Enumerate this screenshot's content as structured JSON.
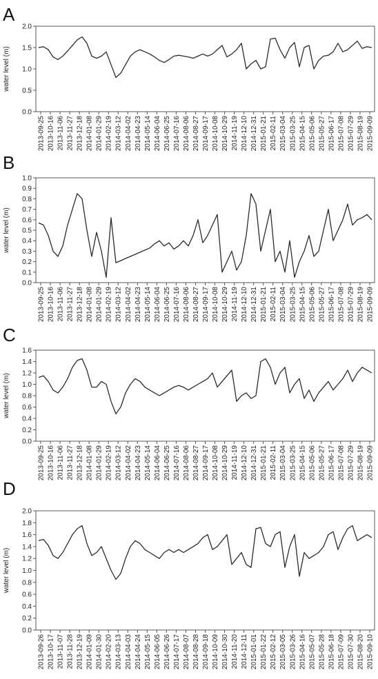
{
  "chart_data": [
    {
      "type": "line",
      "panel_label": "A",
      "ylabel": "water level (m)",
      "ylim": [
        0.0,
        2.0
      ],
      "yticks": [
        "0.0",
        "0.5",
        "1.0",
        "1.5",
        "2.0"
      ],
      "grid": false,
      "line_color": "#2a2a2a",
      "xtick_labels": [
        "2013-09-25",
        "2013-10-16",
        "2013-11-06",
        "2013-11-27",
        "2013-12-18",
        "2014-01-08",
        "2014-01-29",
        "2014-02-19",
        "2014-03-12",
        "2014-04-02",
        "2014-04-23",
        "2014-05-14",
        "2014-06-04",
        "2014-06-25",
        "2014-07-16",
        "2014-08-06",
        "2014-08-27",
        "2014-09-17",
        "2014-10-08",
        "2014-10-29",
        "2014-11-19",
        "2014-12-10",
        "2014-12-31",
        "2015-01-21",
        "2015-02-11",
        "2015-03-04",
        "2015-03-25",
        "2015-04-15",
        "2015-05-06",
        "2015-05-27",
        "2015-06-17",
        "2015-07-08",
        "2015-07-29",
        "2015-08-19",
        "2015-09-09"
      ],
      "series": [
        {
          "x": [
            0,
            1,
            2,
            3,
            4,
            5,
            6,
            7,
            8,
            9,
            10,
            11,
            12,
            13,
            14,
            15,
            16,
            17,
            18,
            19,
            20,
            21,
            22,
            23,
            24,
            25,
            26,
            27,
            28,
            29,
            30,
            31,
            32,
            33,
            34,
            35,
            36,
            37,
            38,
            39,
            40,
            41,
            42,
            43,
            44,
            45,
            46,
            47,
            48,
            49,
            50,
            51,
            52,
            53,
            54,
            55,
            56,
            57,
            58,
            59,
            60,
            61,
            62,
            63,
            64,
            65,
            66,
            67,
            68,
            69
          ],
          "y": [
            1.5,
            1.52,
            1.45,
            1.28,
            1.22,
            1.3,
            1.42,
            1.55,
            1.68,
            1.75,
            1.6,
            1.3,
            1.25,
            1.3,
            1.4,
            1.1,
            0.8,
            0.9,
            1.1,
            1.3,
            1.4,
            1.45,
            1.4,
            1.35,
            1.28,
            1.2,
            1.15,
            1.22,
            1.3,
            1.32,
            1.3,
            1.28,
            1.25,
            1.3,
            1.35,
            1.3,
            1.35,
            1.45,
            1.55,
            1.28,
            1.35,
            1.45,
            1.6,
            1.0,
            1.12,
            1.2,
            1.0,
            1.05,
            1.7,
            1.72,
            1.45,
            1.25,
            1.5,
            1.62,
            1.05,
            1.5,
            1.55,
            1.0,
            1.2,
            1.3,
            1.32,
            1.4,
            1.6,
            1.4,
            1.45,
            1.55,
            1.65,
            1.48,
            1.52,
            1.5
          ]
        }
      ]
    },
    {
      "type": "line",
      "panel_label": "B",
      "ylabel": "water level (m)",
      "ylim": [
        0.0,
        1.0
      ],
      "yticks": [
        "0.0",
        "0.1",
        "0.2",
        "0.3",
        "0.4",
        "0.5",
        "0.6",
        "0.7",
        "0.8",
        "0.9",
        "1.0"
      ],
      "grid": false,
      "line_color": "#2a2a2a",
      "xtick_labels": [
        "2013-09-25",
        "2013-10-16",
        "2013-11-06",
        "2013-11-27",
        "2013-12-18",
        "2014-01-08",
        "2014-01-29",
        "2014-02-19",
        "2014-03-12",
        "2014-04-02",
        "2014-04-23",
        "2014-05-14",
        "2014-06-04",
        "2014-06-25",
        "2014-07-16",
        "2014-08-06",
        "2014-08-27",
        "2014-09-17",
        "2014-10-08",
        "2014-10-29",
        "2014-11-19",
        "2014-12-10",
        "2014-12-31",
        "2015-01-21",
        "2015-02-11",
        "2015-03-04",
        "2015-03-25",
        "2015-04-15",
        "2015-05-06",
        "2015-05-27",
        "2015-06-17",
        "2015-07-08",
        "2015-07-29",
        "2015-08-19",
        "2015-09-09"
      ],
      "series": [
        {
          "x": [
            0,
            1,
            2,
            3,
            4,
            5,
            6,
            7,
            8,
            9,
            10,
            11,
            12,
            13,
            14,
            15,
            16,
            17,
            18,
            19,
            20,
            21,
            22,
            23,
            24,
            25,
            26,
            27,
            28,
            29,
            30,
            31,
            32,
            33,
            34,
            35,
            36,
            37,
            38,
            39,
            40,
            41,
            42,
            43,
            44,
            45,
            46,
            47,
            48,
            49,
            50,
            51,
            52,
            53,
            54,
            55,
            56,
            57,
            58,
            59,
            60,
            61,
            62,
            63,
            64,
            65,
            66,
            67,
            68,
            69
          ],
          "y": [
            0.57,
            0.55,
            0.45,
            0.3,
            0.25,
            0.35,
            0.55,
            0.7,
            0.85,
            0.8,
            0.5,
            0.25,
            0.48,
            0.3,
            0.05,
            0.62,
            0.19,
            0.21,
            0.23,
            0.25,
            0.27,
            0.29,
            0.31,
            0.33,
            0.37,
            0.4,
            0.35,
            0.38,
            0.32,
            0.35,
            0.4,
            0.35,
            0.45,
            0.6,
            0.38,
            0.45,
            0.55,
            0.65,
            0.1,
            0.2,
            0.3,
            0.12,
            0.2,
            0.45,
            0.85,
            0.75,
            0.3,
            0.5,
            0.7,
            0.2,
            0.3,
            0.1,
            0.4,
            0.05,
            0.2,
            0.3,
            0.45,
            0.25,
            0.3,
            0.5,
            0.7,
            0.4,
            0.5,
            0.6,
            0.75,
            0.55,
            0.6,
            0.62,
            0.65,
            0.6
          ]
        }
      ]
    },
    {
      "type": "line",
      "panel_label": "C",
      "ylabel": "water level (m)",
      "ylim": [
        0.0,
        1.6
      ],
      "yticks": [
        "0.0",
        "0.2",
        "0.4",
        "0.6",
        "0.8",
        "1.0",
        "1.2",
        "1.4",
        "1.6"
      ],
      "grid": false,
      "line_color": "#2a2a2a",
      "xtick_labels": [
        "2013-09-25",
        "2013-10-16",
        "2013-11-06",
        "2013-11-27",
        "2013-12-18",
        "2014-01-08",
        "2014-01-29",
        "2014-02-19",
        "2014-03-12",
        "2014-04-02",
        "2014-04-23",
        "2014-05-14",
        "2014-06-04",
        "2014-06-25",
        "2014-07-16",
        "2014-08-06",
        "2014-08-27",
        "2014-09-17",
        "2014-10-08",
        "2014-10-29",
        "2014-11-19",
        "2014-12-10",
        "2014-12-31",
        "2015-01-21",
        "2015-02-11",
        "2015-03-04",
        "2015-03-25",
        "2015-04-15",
        "2015-05-06",
        "2015-05-27",
        "2015-06-17",
        "2015-07-08",
        "2015-07-29",
        "2015-08-19",
        "2015-09-09"
      ],
      "series": [
        {
          "x": [
            0,
            1,
            2,
            3,
            4,
            5,
            6,
            7,
            8,
            9,
            10,
            11,
            12,
            13,
            14,
            15,
            16,
            17,
            18,
            19,
            20,
            21,
            22,
            23,
            24,
            25,
            26,
            27,
            28,
            29,
            30,
            31,
            32,
            33,
            34,
            35,
            36,
            37,
            38,
            39,
            40,
            41,
            42,
            43,
            44,
            45,
            46,
            47,
            48,
            49,
            50,
            51,
            52,
            53,
            54,
            55,
            56,
            57,
            58,
            59,
            60,
            61,
            62,
            63,
            64,
            65,
            66,
            67,
            68,
            69
          ],
          "y": [
            1.12,
            1.15,
            1.05,
            0.9,
            0.85,
            0.95,
            1.1,
            1.3,
            1.42,
            1.45,
            1.25,
            0.95,
            0.95,
            1.05,
            1.0,
            0.7,
            0.48,
            0.6,
            0.85,
            1.0,
            1.1,
            1.05,
            0.95,
            0.9,
            0.85,
            0.8,
            0.85,
            0.9,
            0.95,
            0.98,
            0.95,
            0.9,
            0.95,
            1.0,
            1.05,
            1.1,
            1.2,
            0.95,
            1.05,
            1.15,
            1.25,
            0.7,
            0.8,
            0.85,
            0.75,
            0.8,
            1.4,
            1.45,
            1.3,
            1.0,
            1.2,
            1.3,
            0.85,
            1.0,
            1.1,
            0.75,
            0.9,
            0.7,
            0.85,
            0.95,
            1.05,
            0.9,
            1.0,
            1.1,
            1.25,
            1.05,
            1.2,
            1.3,
            1.25,
            1.2
          ]
        }
      ]
    },
    {
      "type": "line",
      "panel_label": "D",
      "ylabel": "water level (m)",
      "ylim": [
        0.0,
        2.0
      ],
      "yticks": [
        "0.0",
        "0.2",
        "0.4",
        "0.6",
        "0.8",
        "1.0",
        "1.2",
        "1.4",
        "1.6",
        "1.8",
        "2.0"
      ],
      "grid": false,
      "line_color": "#2a2a2a",
      "xtick_labels": [
        "2013-09-26",
        "2013-10-17",
        "2013-11-07",
        "2013-11-28",
        "2013-12-19",
        "2014-01-09",
        "2014-01-30",
        "2014-02-20",
        "2014-03-13",
        "2014-04-03",
        "2014-04-24",
        "2014-05-15",
        "2014-06-05",
        "2014-06-26",
        "2014-07-17",
        "2014-08-07",
        "2014-08-28",
        "2014-09-18",
        "2014-10-09",
        "2014-10-30",
        "2014-11-20",
        "2014-12-11",
        "2015-01-01",
        "2015-01-22",
        "2015-02-12",
        "2015-03-05",
        "2015-03-26",
        "2015-04-16",
        "2015-05-07",
        "2015-05-28",
        "2015-06-18",
        "2015-07-09",
        "2015-07-30",
        "2015-08-20",
        "2015-09-10"
      ],
      "series": [
        {
          "x": [
            0,
            1,
            2,
            3,
            4,
            5,
            6,
            7,
            8,
            9,
            10,
            11,
            12,
            13,
            14,
            15,
            16,
            17,
            18,
            19,
            20,
            21,
            22,
            23,
            24,
            25,
            26,
            27,
            28,
            29,
            30,
            31,
            32,
            33,
            34,
            35,
            36,
            37,
            38,
            39,
            40,
            41,
            42,
            43,
            44,
            45,
            46,
            47,
            48,
            49,
            50,
            51,
            52,
            53,
            54,
            55,
            56,
            57,
            58,
            59,
            60,
            61,
            62,
            63,
            64,
            65,
            66,
            67,
            68,
            69
          ],
          "y": [
            1.5,
            1.52,
            1.42,
            1.25,
            1.2,
            1.3,
            1.45,
            1.6,
            1.7,
            1.75,
            1.45,
            1.25,
            1.3,
            1.4,
            1.2,
            1.0,
            0.85,
            0.95,
            1.2,
            1.4,
            1.5,
            1.45,
            1.35,
            1.3,
            1.25,
            1.2,
            1.3,
            1.35,
            1.3,
            1.35,
            1.3,
            1.35,
            1.4,
            1.45,
            1.55,
            1.6,
            1.35,
            1.4,
            1.5,
            1.6,
            1.1,
            1.2,
            1.3,
            1.1,
            1.05,
            1.7,
            1.72,
            1.45,
            1.4,
            1.6,
            1.65,
            1.05,
            1.4,
            1.6,
            0.9,
            1.3,
            1.2,
            1.25,
            1.3,
            1.4,
            1.6,
            1.65,
            1.35,
            1.55,
            1.7,
            1.75,
            1.5,
            1.55,
            1.6,
            1.55
          ]
        }
      ]
    }
  ]
}
